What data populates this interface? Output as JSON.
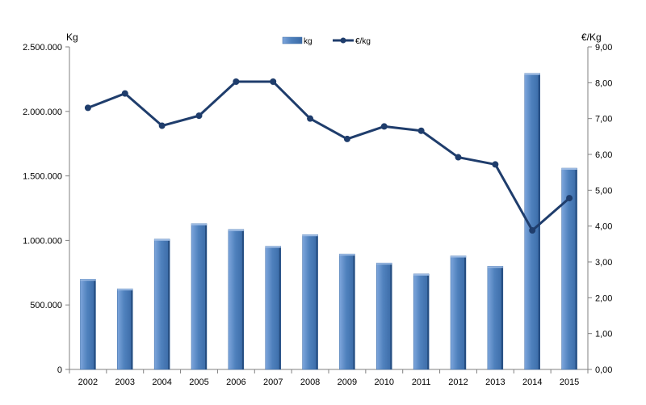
{
  "colors": {
    "bar_fill": "#4f81bd",
    "bar_light": "#7ea6dc",
    "bar_dark": "#254d80",
    "line": "#1f3d6c",
    "axis": "#808080",
    "page_edge": "#a6a6a6"
  },
  "chart_data": {
    "type": "bar",
    "categories": [
      "2002",
      "2003",
      "2004",
      "2005",
      "2006",
      "2007",
      "2008",
      "2009",
      "2010",
      "2011",
      "2012",
      "2013",
      "2014",
      "2015"
    ],
    "series": [
      {
        "name": "kg",
        "type": "bar",
        "axis": "left",
        "values": [
          700000,
          625000,
          1010000,
          1130000,
          1085000,
          955000,
          1045000,
          895000,
          825000,
          740000,
          880000,
          800000,
          2295000,
          1560000
        ]
      },
      {
        "name": "€/kg",
        "type": "line",
        "axis": "right",
        "values": [
          7.3,
          7.7,
          6.8,
          7.08,
          8.03,
          8.03,
          7.0,
          6.43,
          6.78,
          6.66,
          5.92,
          5.72,
          3.88,
          4.78
        ]
      }
    ],
    "ylabel": "Kg",
    "ylabel_right": "€/Kg",
    "ylim": [
      0,
      2500000
    ],
    "ylim_right": [
      0,
      9
    ],
    "yticks": [
      "2.500.000",
      "2.000.000",
      "1.500.000",
      "1.000.000",
      "500.000",
      "0"
    ],
    "yticks_right": [
      "9,00",
      "8,00",
      "7,00",
      "6,00",
      "5,00",
      "4,00",
      "3,00",
      "2,00",
      "1,00",
      "0,00"
    ],
    "legend_position": "top-center",
    "grid": false
  }
}
